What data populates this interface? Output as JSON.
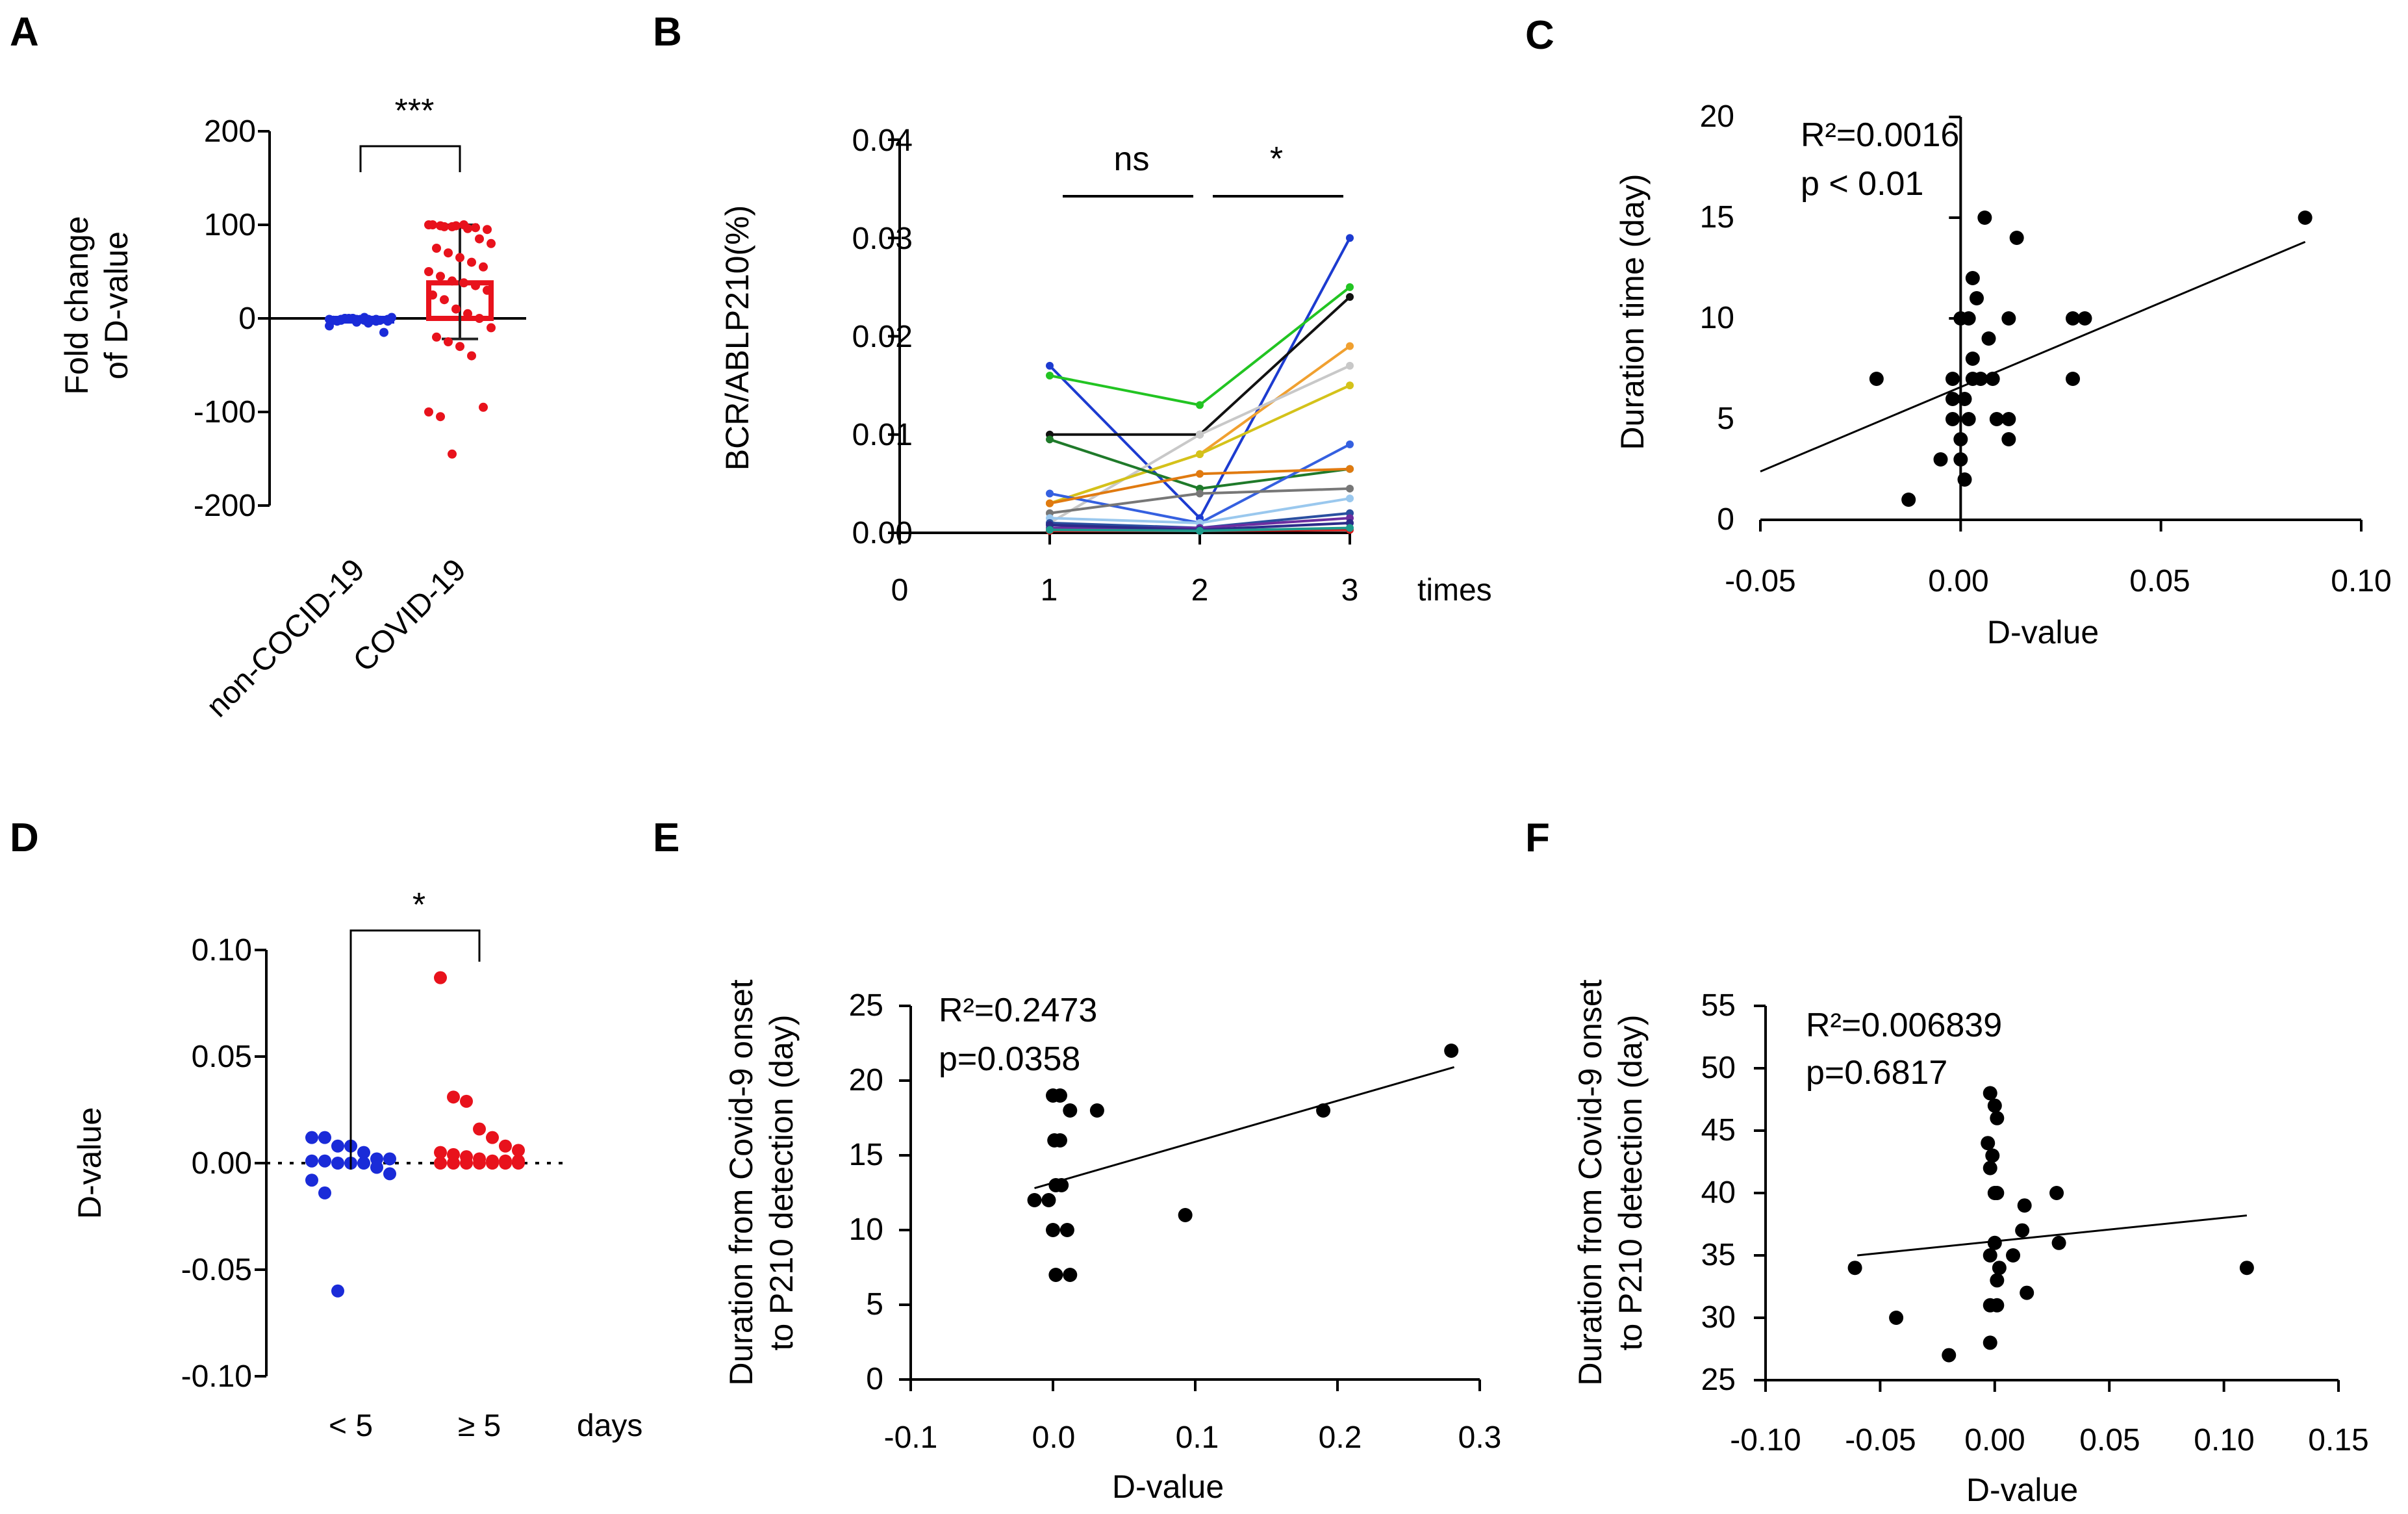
{
  "panel_labels": {
    "A": "A",
    "B": "B",
    "C": "C",
    "D": "D",
    "E": "E",
    "F": "F"
  },
  "chart_data": [
    {
      "panel": "A",
      "type": "bar",
      "ylabel_lines": [
        "Fold change",
        "of D-value"
      ],
      "ylim": [
        -200,
        200
      ],
      "yticks": [
        200,
        100,
        0,
        -100,
        -200
      ],
      "tick_labels": [
        "200",
        "100",
        "0",
        "-100",
        "-200"
      ],
      "categories": [
        "non-COCID-19",
        "COVID-19"
      ],
      "means": [
        -2,
        38
      ],
      "error": [
        [
          -2,
          -2
        ],
        [
          -22,
          100
        ]
      ],
      "colors": [
        "#1a2bd8",
        "#e8121c"
      ],
      "significance": "***",
      "points": [
        [
          -1,
          -2,
          0,
          1,
          -3,
          -1,
          -2,
          0,
          -4,
          -1,
          -2,
          1,
          -3,
          0,
          -1,
          -2,
          -15,
          -8,
          -1,
          0,
          -2,
          -1,
          -3,
          -2,
          0,
          -1,
          -5,
          -2
        ],
        [
          100,
          99,
          98,
          100,
          97,
          95,
          100,
          98,
          99,
          96,
          85,
          80,
          75,
          70,
          65,
          60,
          55,
          50,
          45,
          40,
          38,
          35,
          30,
          25,
          20,
          10,
          5,
          0,
          -10,
          -20,
          -25,
          -30,
          -40,
          -95,
          -100,
          -105,
          -145
        ]
      ]
    },
    {
      "panel": "B",
      "type": "line",
      "ylabel": "BCR/ABLP210(%)",
      "xlabel": "times",
      "ylim": [
        0,
        0.04
      ],
      "xlim": [
        0,
        3
      ],
      "xticks": [
        0,
        1,
        2,
        3
      ],
      "x_tick_labels": [
        "0",
        "1",
        "2",
        "3"
      ],
      "yticks": [
        0,
        0.01,
        0.02,
        0.03,
        0.04
      ],
      "y_tick_labels": [
        "0.00",
        "0.01",
        "0.02",
        "0.03",
        "0.04"
      ],
      "x": [
        1,
        2,
        3
      ],
      "comparisons": [
        {
          "label": "ns",
          "from": 1,
          "to": 2
        },
        {
          "label": "*",
          "from": 2,
          "to": 3
        }
      ],
      "series": [
        {
          "color": "#1c3bd0",
          "values": [
            0.017,
            0.0015,
            0.03
          ]
        },
        {
          "color": "#22c422",
          "values": [
            0.016,
            0.013,
            0.025
          ]
        },
        {
          "color": "#111111",
          "values": [
            0.01,
            0.01,
            0.024
          ]
        },
        {
          "color": "#f0a030",
          "values": [
            0.003,
            0.008,
            0.019
          ]
        },
        {
          "color": "#c8c8c8",
          "values": [
            0.001,
            0.01,
            0.017
          ]
        },
        {
          "color": "#d4c21a",
          "values": [
            0.003,
            0.008,
            0.015
          ]
        },
        {
          "color": "#1f7a2a",
          "values": [
            0.0095,
            0.0045,
            0.0065
          ]
        },
        {
          "color": "#3560e0",
          "values": [
            0.004,
            0.001,
            0.009
          ]
        },
        {
          "color": "#e07a10",
          "values": [
            0.003,
            0.006,
            0.0065
          ]
        },
        {
          "color": "#777777",
          "values": [
            0.002,
            0.004,
            0.0045
          ]
        },
        {
          "color": "#9ac8ee",
          "values": [
            0.0015,
            0.001,
            0.0035
          ]
        },
        {
          "color": "#2a4fa0",
          "values": [
            0.001,
            0.0005,
            0.002
          ]
        },
        {
          "color": "#6b2da0",
          "values": [
            0.0005,
            0.0005,
            0.0015
          ]
        },
        {
          "color": "#d81818",
          "values": [
            0.0002,
            0.0002,
            0.0003
          ]
        },
        {
          "color": "#2c2c8a",
          "values": [
            0.0008,
            0.0003,
            0.001
          ]
        },
        {
          "color": "#1d9a8c",
          "values": [
            0.0003,
            0.0002,
            0.0005
          ]
        }
      ]
    },
    {
      "panel": "C",
      "type": "scatter",
      "ylabel": "Duration time (day)",
      "xlabel": "D-value",
      "xlim": [
        -0.05,
        0.1
      ],
      "ylim": [
        0,
        20
      ],
      "xticks": [
        -0.05,
        0,
        0.05,
        0.1
      ],
      "x_tick_labels": [
        "-0.05",
        "0.00",
        "0.05",
        "0.10"
      ],
      "yticks": [
        0,
        5,
        10,
        15,
        20
      ],
      "y_tick_labels": [
        "0",
        "5",
        "10",
        "15",
        "20"
      ],
      "annotation": [
        "R²=0.0016",
        "p < 0.01"
      ],
      "fit": {
        "x": [
          -0.05,
          0.086
        ],
        "y": [
          2.4,
          13.8
        ]
      },
      "points": [
        [
          -0.021,
          7
        ],
        [
          -0.013,
          1
        ],
        [
          -0.005,
          3
        ],
        [
          -0.002,
          5
        ],
        [
          -0.002,
          6
        ],
        [
          -0.002,
          7
        ],
        [
          0,
          10
        ],
        [
          0,
          4
        ],
        [
          0,
          3
        ],
        [
          0.001,
          2
        ],
        [
          0.001,
          6
        ],
        [
          0.002,
          10
        ],
        [
          0.002,
          5
        ],
        [
          0.003,
          7
        ],
        [
          0.003,
          8
        ],
        [
          0.003,
          12
        ],
        [
          0.004,
          11
        ],
        [
          0.005,
          7
        ],
        [
          0.006,
          15
        ],
        [
          0.007,
          9
        ],
        [
          0.008,
          7
        ],
        [
          0.009,
          5
        ],
        [
          0.012,
          10
        ],
        [
          0.012,
          5
        ],
        [
          0.012,
          4
        ],
        [
          0.014,
          14
        ],
        [
          0.028,
          10
        ],
        [
          0.028,
          7
        ],
        [
          0.031,
          10
        ],
        [
          0.086,
          15
        ]
      ]
    },
    {
      "panel": "D",
      "type": "scatter",
      "ylabel": "D-value",
      "xlabel": "days",
      "ylim": [
        -0.1,
        0.1
      ],
      "yticks": [
        0.1,
        0.05,
        0,
        -0.05,
        -0.1
      ],
      "y_tick_labels": [
        "0.10",
        "0.05",
        "0.00",
        "-0.05",
        "-0.10"
      ],
      "categories": [
        "< 5",
        "≥ 5"
      ],
      "significance": "*",
      "colors": [
        "#1a2bd8",
        "#e8121c"
      ],
      "points": [
        [
          0.012,
          0.012,
          0.008,
          0.008,
          0.005,
          0.002,
          0.002,
          0.001,
          0.001,
          0.0,
          0.0,
          0.0,
          -0.002,
          -0.005,
          -0.008,
          -0.014,
          -0.06
        ],
        [
          0.087,
          0.031,
          0.029,
          0.016,
          0.012,
          0.008,
          0.006,
          0.005,
          0.004,
          0.003,
          0.002,
          0.001,
          0.001,
          0.0,
          0.0,
          0.0,
          0.0,
          0.0,
          0.0,
          0.0,
          0.001
        ]
      ]
    },
    {
      "panel": "E",
      "type": "scatter",
      "ylabel_lines": [
        "Duration from Covid-9 onset",
        "to P210 detection (day)"
      ],
      "xlabel": "D-value",
      "xlim": [
        -0.1,
        0.3
      ],
      "ylim": [
        0,
        25
      ],
      "xticks": [
        -0.1,
        0,
        0.1,
        0.2,
        0.3
      ],
      "x_tick_labels": [
        "-0.1",
        "0.0",
        "0.1",
        "0.2",
        "0.3"
      ],
      "yticks": [
        0,
        5,
        10,
        15,
        20,
        25
      ],
      "y_tick_labels": [
        "0",
        "5",
        "10",
        "15",
        "20",
        "25"
      ],
      "annotation": [
        "R²=0.2473",
        "p=0.0358"
      ],
      "fit": {
        "x": [
          -0.013,
          0.282
        ],
        "y": [
          12.8,
          20.9
        ]
      },
      "points": [
        [
          -0.013,
          12
        ],
        [
          -0.003,
          12
        ],
        [
          0,
          19
        ],
        [
          0.005,
          19
        ],
        [
          0.001,
          16
        ],
        [
          0.005,
          16
        ],
        [
          0.002,
          13
        ],
        [
          0.006,
          13
        ],
        [
          0,
          10
        ],
        [
          0.01,
          10
        ],
        [
          0.002,
          7
        ],
        [
          0.012,
          7
        ],
        [
          0.012,
          18
        ],
        [
          0.031,
          18
        ],
        [
          0.093,
          11
        ],
        [
          0.19,
          18
        ],
        [
          0.28,
          22
        ]
      ]
    },
    {
      "panel": "F",
      "type": "scatter",
      "ylabel_lines": [
        "Duration from Covid-9 onset",
        "to P210 detection (day)"
      ],
      "xlabel": "D-value",
      "xlim": [
        -0.1,
        0.15
      ],
      "ylim": [
        25,
        55
      ],
      "xticks": [
        -0.1,
        -0.05,
        0,
        0.05,
        0.1,
        0.15
      ],
      "x_tick_labels": [
        "-0.10",
        "-0.05",
        "0.00",
        "0.05",
        "0.10",
        "0.15"
      ],
      "yticks": [
        25,
        30,
        35,
        40,
        45,
        50,
        55
      ],
      "y_tick_labels": [
        "25",
        "30",
        "35",
        "40",
        "45",
        "50",
        "55"
      ],
      "annotation": [
        "R²=0.006839",
        "p=0.6817"
      ],
      "fit": {
        "x": [
          -0.06,
          0.11
        ],
        "y": [
          35.0,
          38.2
        ]
      },
      "points": [
        [
          -0.061,
          34
        ],
        [
          -0.043,
          30
        ],
        [
          -0.02,
          27
        ],
        [
          -0.002,
          48
        ],
        [
          -0.003,
          44
        ],
        [
          0,
          47
        ],
        [
          0.001,
          46
        ],
        [
          -0.001,
          43
        ],
        [
          -0.002,
          42
        ],
        [
          0,
          40
        ],
        [
          0.001,
          40
        ],
        [
          0,
          36
        ],
        [
          -0.002,
          35
        ],
        [
          0.002,
          34
        ],
        [
          0.001,
          33
        ],
        [
          -0.002,
          31
        ],
        [
          0.001,
          31
        ],
        [
          -0.002,
          28
        ],
        [
          0.008,
          35
        ],
        [
          0.012,
          37
        ],
        [
          0.013,
          39
        ],
        [
          0.014,
          32
        ],
        [
          0.027,
          40
        ],
        [
          0.028,
          36
        ],
        [
          0.11,
          34
        ]
      ]
    }
  ]
}
